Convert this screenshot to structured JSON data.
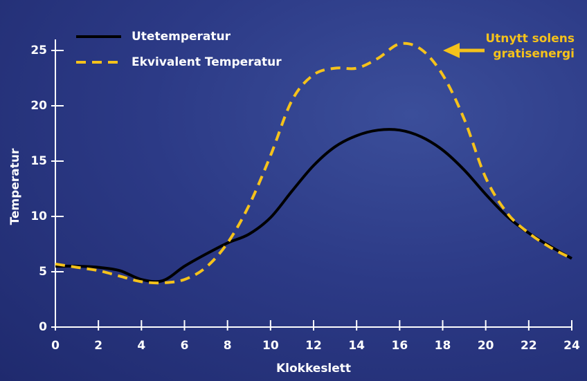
{
  "chart_data": {
    "type": "line",
    "x_label": "Klokkeslett",
    "y_label": "Temperatur",
    "annotations": [
      "Utnytt solens",
      "gratisenergi"
    ],
    "annotation_color": "#f5c21b",
    "x": [
      0,
      1,
      2,
      3,
      4,
      5,
      6,
      7,
      8,
      9,
      10,
      11,
      12,
      13,
      14,
      15,
      16,
      17,
      18,
      19,
      20,
      21,
      22,
      23,
      24
    ],
    "series": [
      {
        "name": "Utetemperatur",
        "color": "#000000",
        "dashed": false,
        "values": [
          5.5,
          5.5,
          5.4,
          5.1,
          4.3,
          4.2,
          5.5,
          6.6,
          7.6,
          8.4,
          9.9,
          12.3,
          14.6,
          16.3,
          17.3,
          17.8,
          17.8,
          17.2,
          16,
          14.2,
          12,
          10,
          8.5,
          7.3,
          6.2
        ]
      },
      {
        "name": "Ekvivalent Temperatur",
        "color": "#f5c21b",
        "dashed": true,
        "values": [
          5.7,
          5.4,
          5.1,
          4.6,
          4.1,
          4.0,
          4.3,
          5.4,
          7.6,
          11,
          15.5,
          20.5,
          22.8,
          23.4,
          23.4,
          24.3,
          25.6,
          25.1,
          22.8,
          18.8,
          13.5,
          10.3,
          8.5,
          7.2,
          6.2
        ]
      }
    ],
    "xlim": [
      0,
      24
    ],
    "xticks": [
      0,
      2,
      4,
      6,
      8,
      10,
      12,
      14,
      16,
      18,
      20,
      22,
      24
    ],
    "ylim": [
      0,
      26
    ],
    "yticks": [
      0,
      5,
      10,
      15,
      20,
      25
    ]
  }
}
